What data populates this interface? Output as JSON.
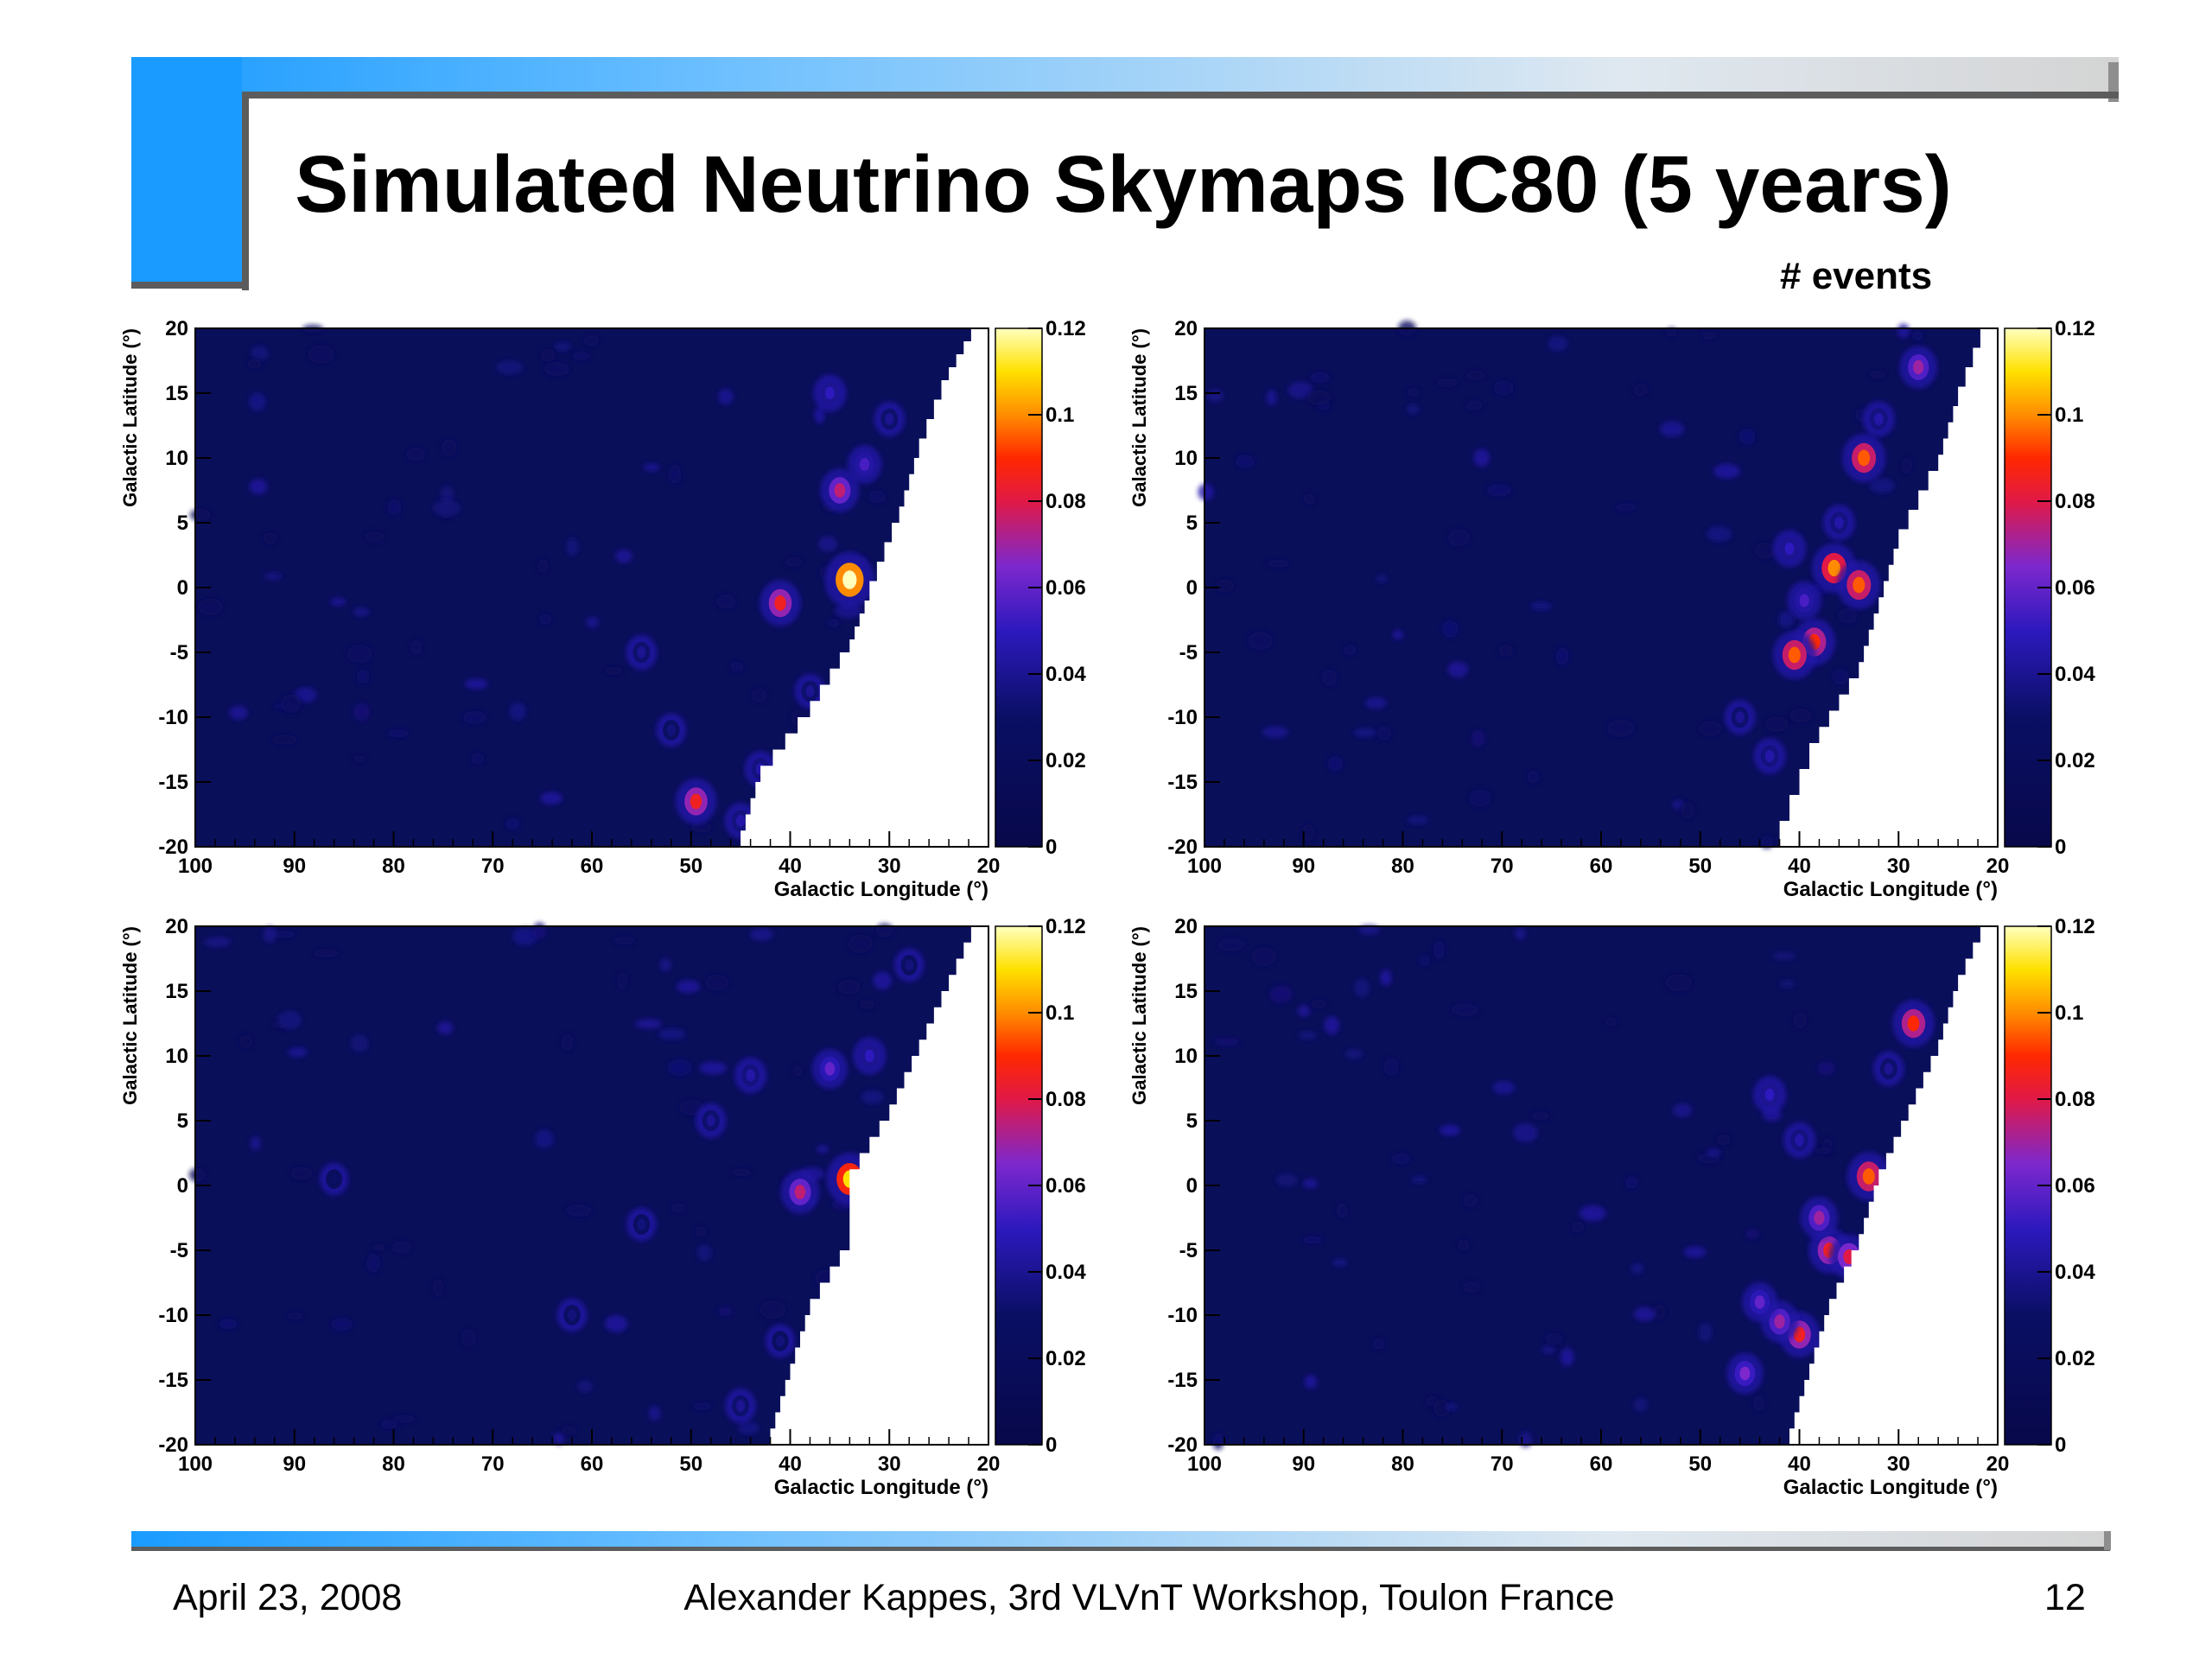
{
  "header": {
    "title": "Simulated Neutrino Skymaps IC80 (5 years)",
    "colorbar_title": "# events"
  },
  "footer": {
    "date": "April 23, 2008",
    "center": "Alexander Kappes, 3rd VLVnT Workshop, Toulon France",
    "page": "12"
  },
  "colors": {
    "accent_blue": "#1a9bff",
    "frame_gray": "#5c5c5c",
    "map_background": "#0a0f5a"
  },
  "chart_data": [
    {
      "type": "heatmap",
      "xlabel": "Galactic Longitude (°)",
      "ylabel": "Galactic Latitude (°)",
      "xlim": [
        100,
        20
      ],
      "ylim": [
        -20,
        20
      ],
      "xticks": [
        "100",
        "90",
        "80",
        "70",
        "60",
        "50",
        "40",
        "30",
        "20"
      ],
      "yticks": [
        "20",
        "15",
        "10",
        "5",
        "0",
        "-5",
        "-10",
        "-15",
        "-20"
      ],
      "colorbar": {
        "min": 0,
        "max": 0.12,
        "ticks": [
          "0.12",
          "0.1",
          "0.08",
          "0.06",
          "0.04",
          "0.02",
          "0"
        ]
      },
      "visibility_edge": [
        [
          21,
          20
        ],
        [
          24,
          16
        ],
        [
          27,
          10
        ],
        [
          29,
          5
        ],
        [
          32,
          -1
        ],
        [
          34,
          -5
        ],
        [
          38,
          -10
        ],
        [
          43,
          -15
        ],
        [
          45,
          -20
        ]
      ],
      "hotspots": [
        {
          "l": 34.0,
          "b": 0.6,
          "value": 0.125
        },
        {
          "l": 41.0,
          "b": -1.2,
          "value": 0.085
        },
        {
          "l": 49.5,
          "b": -16.5,
          "value": 0.085
        },
        {
          "l": 35.0,
          "b": 7.5,
          "value": 0.075
        },
        {
          "l": 32.5,
          "b": 9.5,
          "value": 0.055
        },
        {
          "l": 36.0,
          "b": 15.0,
          "value": 0.05
        },
        {
          "l": 45.0,
          "b": -18.0,
          "value": 0.045
        },
        {
          "l": 43.0,
          "b": -14.0,
          "value": 0.045
        },
        {
          "l": 38.0,
          "b": -8.0,
          "value": 0.04
        },
        {
          "l": 55.0,
          "b": -5.0,
          "value": 0.04
        },
        {
          "l": 52.0,
          "b": -11.0,
          "value": 0.035
        },
        {
          "l": 30.0,
          "b": 13.0,
          "value": 0.04
        }
      ]
    },
    {
      "type": "heatmap",
      "xlabel": "Galactic Longitude (°)",
      "ylabel": "Galactic Latitude (°)",
      "xlim": [
        100,
        20
      ],
      "ylim": [
        -20,
        20
      ],
      "xticks": [
        "100",
        "90",
        "80",
        "70",
        "60",
        "50",
        "40",
        "30",
        "20"
      ],
      "yticks": [
        "20",
        "15",
        "10",
        "5",
        "0",
        "-5",
        "-10",
        "-15",
        "-20"
      ],
      "colorbar": {
        "min": 0,
        "max": 0.12,
        "ticks": [
          "0.12",
          "0.1",
          "0.08",
          "0.06",
          "0.04",
          "0.02",
          "0"
        ]
      },
      "visibility_edge": [
        [
          21,
          20
        ],
        [
          24,
          14
        ],
        [
          26,
          9
        ],
        [
          30,
          3
        ],
        [
          32,
          -2
        ],
        [
          34,
          -7
        ],
        [
          38,
          -12
        ],
        [
          42,
          -20
        ]
      ],
      "hotspots": [
        {
          "l": 33.5,
          "b": 10.0,
          "value": 0.095
        },
        {
          "l": 36.5,
          "b": 1.5,
          "value": 0.1
        },
        {
          "l": 34.0,
          "b": 0.2,
          "value": 0.095
        },
        {
          "l": 38.5,
          "b": -4.2,
          "value": 0.09
        },
        {
          "l": 40.5,
          "b": -5.2,
          "value": 0.095
        },
        {
          "l": 28.0,
          "b": 17.0,
          "value": 0.07
        },
        {
          "l": 39.5,
          "b": -1.0,
          "value": 0.055
        },
        {
          "l": 41.0,
          "b": 3.0,
          "value": 0.05
        },
        {
          "l": 36.0,
          "b": 5.0,
          "value": 0.045
        },
        {
          "l": 43.0,
          "b": -13.0,
          "value": 0.045
        },
        {
          "l": 46.0,
          "b": -10.0,
          "value": 0.04
        },
        {
          "l": 32.0,
          "b": 13.0,
          "value": 0.045
        }
      ]
    },
    {
      "type": "heatmap",
      "xlabel": "Galactic Longitude (°)",
      "ylabel": "Galactic Latitude (°)",
      "xlim": [
        100,
        20
      ],
      "ylim": [
        -20,
        20
      ],
      "xticks": [
        "100",
        "90",
        "80",
        "70",
        "60",
        "50",
        "40",
        "30",
        "20"
      ],
      "yticks": [
        "20",
        "15",
        "10",
        "5",
        "0",
        "-5",
        "-10",
        "-15",
        "-20"
      ],
      "colorbar": {
        "min": 0,
        "max": 0.12,
        "ticks": [
          "0.12",
          "0.1",
          "0.08",
          "0.06",
          "0.04",
          "0.02",
          "0"
        ]
      },
      "visibility_edge": [
        [
          21,
          20
        ],
        [
          24,
          15
        ],
        [
          27,
          10
        ],
        [
          30,
          5
        ],
        [
          34,
          0
        ],
        [
          34,
          -5
        ],
        [
          38,
          -10
        ],
        [
          40,
          -15
        ],
        [
          42,
          -20
        ]
      ],
      "hotspots": [
        {
          "l": 34.0,
          "b": 0.5,
          "value": 0.11
        },
        {
          "l": 39.0,
          "b": -0.5,
          "value": 0.075
        },
        {
          "l": 36.0,
          "b": 9.0,
          "value": 0.06
        },
        {
          "l": 32.0,
          "b": 10.0,
          "value": 0.05
        },
        {
          "l": 44.0,
          "b": 8.5,
          "value": 0.045
        },
        {
          "l": 48.0,
          "b": 5.0,
          "value": 0.04
        },
        {
          "l": 55.0,
          "b": -3.0,
          "value": 0.035
        },
        {
          "l": 62.0,
          "b": -10.0,
          "value": 0.035
        },
        {
          "l": 45.0,
          "b": -17.0,
          "value": 0.04
        },
        {
          "l": 41.0,
          "b": -12.0,
          "value": 0.035
        },
        {
          "l": 28.0,
          "b": 17.0,
          "value": 0.035
        },
        {
          "l": 86.0,
          "b": 0.5,
          "value": 0.03
        }
      ]
    },
    {
      "type": "heatmap",
      "xlabel": "Galactic Longitude (°)",
      "ylabel": "Galactic Latitude (°)",
      "xlim": [
        100,
        20
      ],
      "ylim": [
        -20,
        20
      ],
      "xticks": [
        "100",
        "90",
        "80",
        "70",
        "60",
        "50",
        "40",
        "30",
        "20"
      ],
      "yticks": [
        "20",
        "15",
        "10",
        "5",
        "0",
        "-5",
        "-10",
        "-15",
        "-20"
      ],
      "colorbar": {
        "min": 0,
        "max": 0.12,
        "ticks": [
          "0.12",
          "0.1",
          "0.08",
          "0.06",
          "0.04",
          "0.02",
          "0"
        ]
      },
      "visibility_edge": [
        [
          21,
          20
        ],
        [
          24,
          15
        ],
        [
          26,
          10
        ],
        [
          29,
          5
        ],
        [
          32,
          0
        ],
        [
          34,
          -5
        ],
        [
          37,
          -10
        ],
        [
          39,
          -15
        ],
        [
          41,
          -20
        ]
      ],
      "hotspots": [
        {
          "l": 28.5,
          "b": 12.5,
          "value": 0.09
        },
        {
          "l": 33.0,
          "b": 0.7,
          "value": 0.095
        },
        {
          "l": 37.0,
          "b": -5.0,
          "value": 0.085
        },
        {
          "l": 35.0,
          "b": -5.5,
          "value": 0.08
        },
        {
          "l": 38.0,
          "b": -2.5,
          "value": 0.07
        },
        {
          "l": 40.0,
          "b": -11.5,
          "value": 0.085
        },
        {
          "l": 42.0,
          "b": -10.5,
          "value": 0.07
        },
        {
          "l": 44.0,
          "b": -9.0,
          "value": 0.06
        },
        {
          "l": 45.5,
          "b": -14.5,
          "value": 0.065
        },
        {
          "l": 43.0,
          "b": 7.0,
          "value": 0.05
        },
        {
          "l": 40.0,
          "b": 3.5,
          "value": 0.045
        },
        {
          "l": 31.0,
          "b": 9.0,
          "value": 0.04
        }
      ]
    }
  ]
}
